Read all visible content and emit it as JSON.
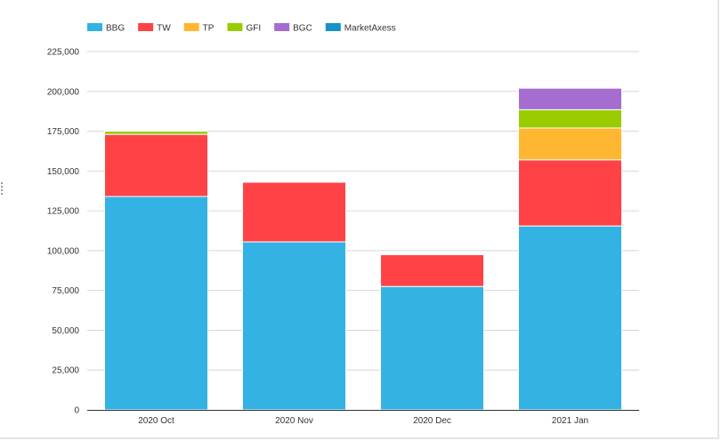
{
  "chart_data": {
    "type": "bar",
    "stacked": true,
    "categories": [
      "2020 Oct",
      "2020 Nov",
      "2020 Dec",
      "2021 Jan"
    ],
    "series": [
      {
        "name": "BBG",
        "color": "#33b2e3",
        "values": [
          134000,
          105500,
          77500,
          115500
        ]
      },
      {
        "name": "TW",
        "color": "#ff4246",
        "values": [
          39000,
          37500,
          20000,
          41500
        ]
      },
      {
        "name": "TP",
        "color": "#ffb731",
        "values": [
          0,
          0,
          0,
          20000
        ]
      },
      {
        "name": "GFI",
        "color": "#99cc00",
        "values": [
          2000,
          500,
          500,
          11500
        ]
      },
      {
        "name": "BGC",
        "color": "#a56dcf",
        "values": [
          0,
          0,
          0,
          13500
        ]
      },
      {
        "name": "MarketAxess",
        "color": "#1592c7",
        "values": [
          0,
          0,
          0,
          0
        ]
      }
    ],
    "y_ticks": [
      "0",
      "25,000",
      "50,000",
      "75,000",
      "100,000",
      "125,000",
      "150,000",
      "175,000",
      "200,000",
      "225,000"
    ],
    "ylim": [
      0,
      225000
    ],
    "grid": true,
    "legend_position": "top-left"
  }
}
